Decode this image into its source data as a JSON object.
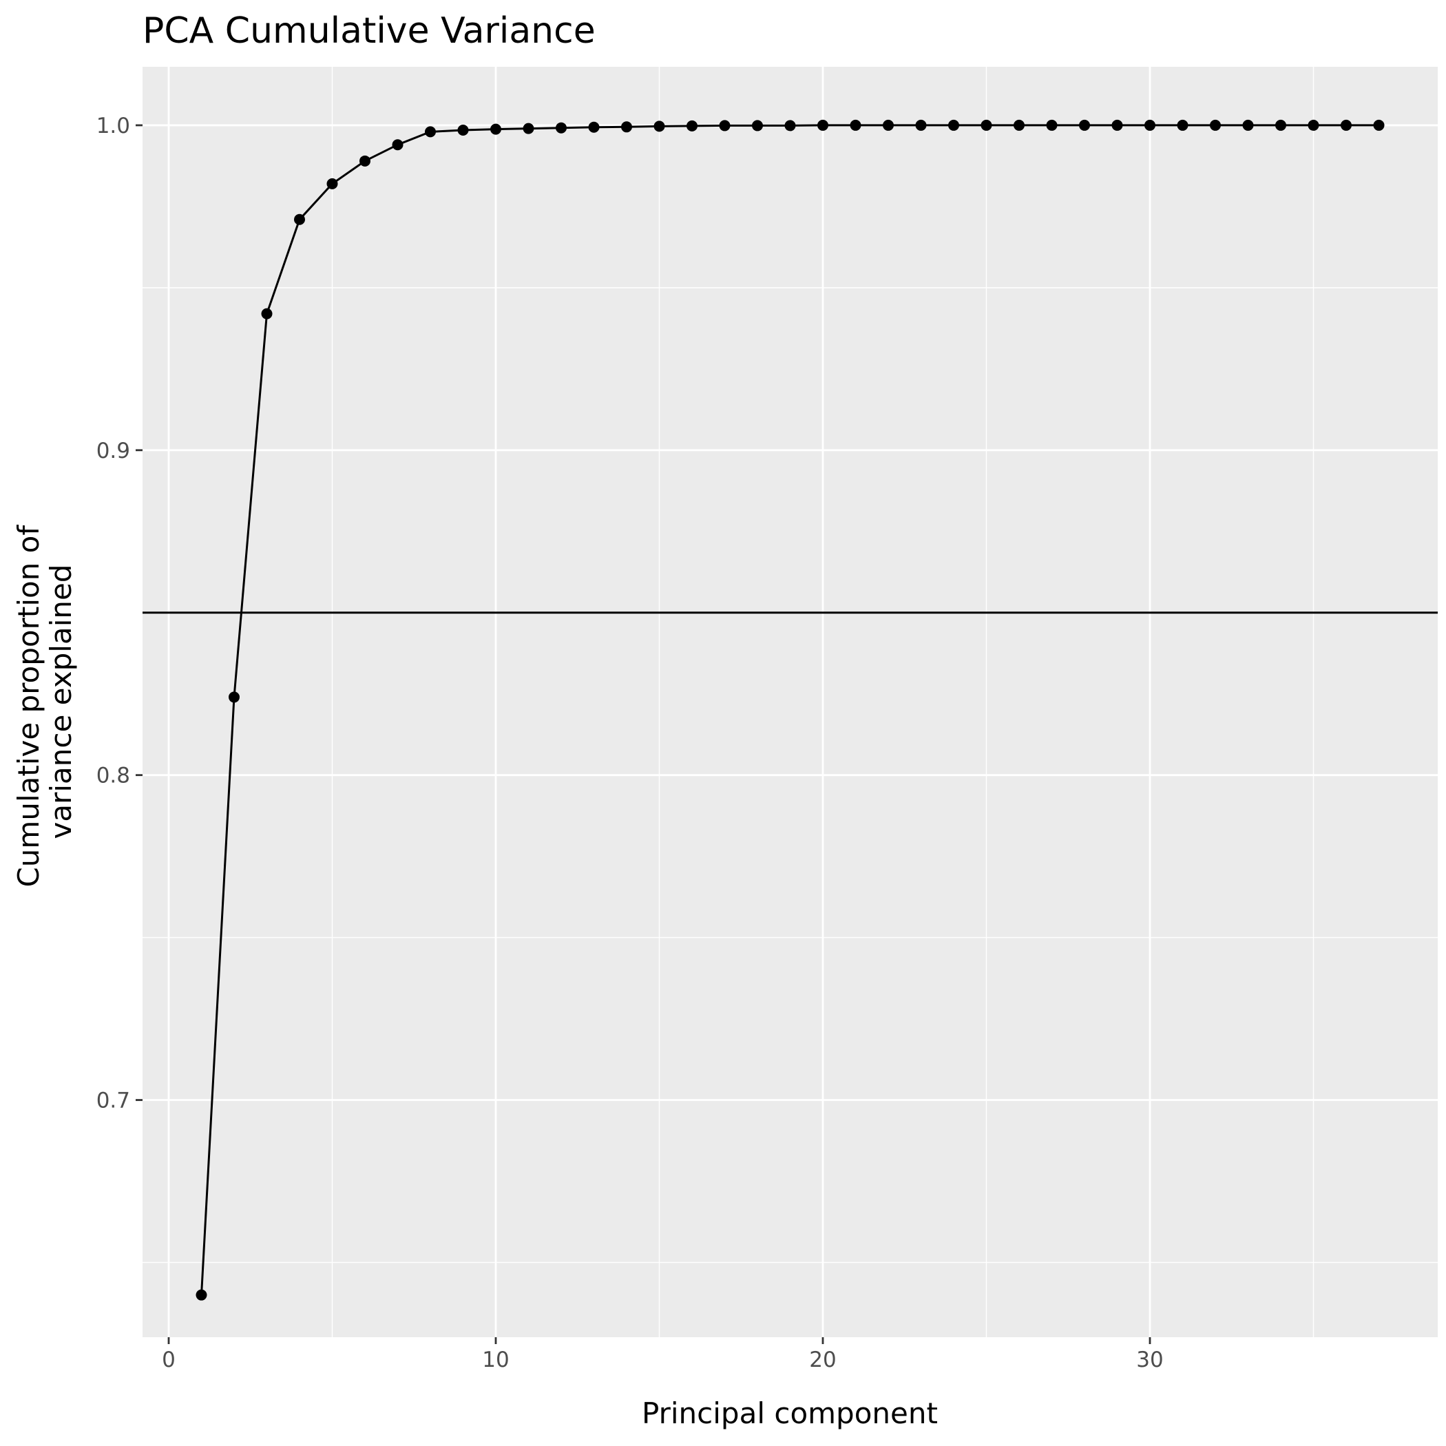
{
  "chart_data": {
    "type": "line",
    "title": "PCA Cumulative Variance",
    "xlabel": "Principal component",
    "ylabel_lines": [
      "Cumulative proportion of",
      "variance explained"
    ],
    "x": [
      1,
      2,
      3,
      4,
      5,
      6,
      7,
      8,
      9,
      10,
      11,
      12,
      13,
      14,
      15,
      16,
      17,
      18,
      19,
      20,
      21,
      22,
      23,
      24,
      25,
      26,
      27,
      28,
      29,
      30,
      31,
      32,
      33,
      34,
      35,
      36,
      37
    ],
    "y": [
      0.64,
      0.824,
      0.942,
      0.971,
      0.982,
      0.989,
      0.994,
      0.998,
      0.9985,
      0.9988,
      0.999,
      0.9992,
      0.9994,
      0.9995,
      0.9997,
      0.9998,
      0.9999,
      0.9999,
      0.9999,
      1.0,
      1.0,
      1.0,
      1.0,
      1.0,
      1.0,
      1.0,
      1.0,
      1.0,
      1.0,
      1.0,
      1.0,
      1.0,
      1.0,
      1.0,
      1.0,
      1.0,
      1.0
    ],
    "reference_line_y": 0.85,
    "xlim": [
      -0.8,
      38.8
    ],
    "ylim": [
      0.627,
      1.018
    ],
    "x_ticks": [
      0,
      10,
      20,
      30
    ],
    "x_tick_labels": [
      "0",
      "10",
      "20",
      "30"
    ],
    "x_minor_ticks": [
      5,
      15,
      25,
      35
    ],
    "y_ticks": [
      0.7,
      0.8,
      0.9,
      1.0
    ],
    "y_tick_labels": [
      "0.7",
      "0.8",
      "0.9",
      "1.0"
    ],
    "y_minor_ticks": [
      0.65,
      0.75,
      0.85,
      0.95
    ],
    "grid": true,
    "legend": "none",
    "colors": {
      "panel": "#ebebeb",
      "grid": "#ffffff",
      "line": "#000000",
      "point": "#000000",
      "tick": "#333333"
    }
  }
}
